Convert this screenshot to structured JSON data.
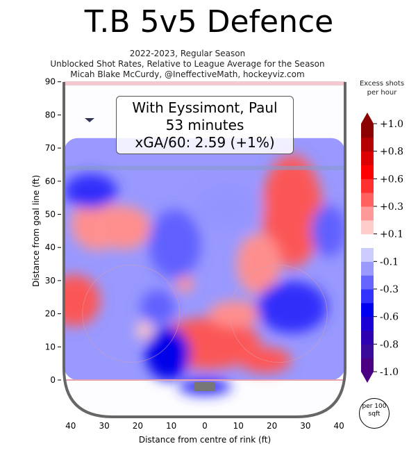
{
  "chart_data": {
    "type": "heatmap",
    "title": "T.B 5v5 Defence",
    "subtitles": [
      "2022-2023, Regular Season",
      "Unblocked Shot Rates, Relative to League Average for the Season",
      "Micah Blake McCurdy, @IneffectiveMath, hockeyviz.com"
    ],
    "xlabel": "Distance from centre of rink (ft)",
    "ylabel": "Distance from goal line (ft)",
    "xlim": [
      -42.5,
      42.5
    ],
    "ylim": [
      -11,
      90
    ],
    "xticks": [
      -40,
      -30,
      -20,
      -10,
      0,
      10,
      20,
      30,
      40
    ],
    "xtick_labels": [
      "40",
      "30",
      "20",
      "10",
      "0",
      "10",
      "20",
      "30",
      "40"
    ],
    "yticks": [
      0,
      10,
      20,
      30,
      40,
      50,
      60,
      70,
      80,
      90
    ],
    "yticklabels": [
      "0",
      "10",
      "20",
      "30",
      "40",
      "50",
      "60",
      "70",
      "80",
      "90"
    ],
    "annotation": {
      "line1": "With Eyssimont, Paul",
      "line2": "53 minutes",
      "line3": "xGA/60: 2.59 (+1%)"
    },
    "colorbar": {
      "title": "Excess shots per hour",
      "ticks": [
        "+1.0",
        "+0.8",
        "+0.6",
        "+0.3",
        "+0.1",
        "-0.1",
        "-0.3",
        "-0.6",
        "-0.8",
        "-1.0"
      ],
      "range": [
        -1,
        1
      ]
    },
    "unit_badge": "per 100 sqft",
    "background_value": -0.15,
    "hotspots": [
      {
        "x": 1,
        "y": 11,
        "rx": 12,
        "ry": 6,
        "v": 1.0
      },
      {
        "x": 26,
        "y": 51,
        "rx": 7,
        "ry": 13,
        "v": 1.0
      },
      {
        "x": 16,
        "y": 35,
        "rx": 5,
        "ry": 7,
        "v": 0.8
      },
      {
        "x": -32,
        "y": 47,
        "rx": 6,
        "ry": 6,
        "v": 0.7
      },
      {
        "x": -24,
        "y": 46,
        "rx": 6,
        "ry": 5,
        "v": 0.7
      },
      {
        "x": -39,
        "y": 24,
        "rx": 6,
        "ry": 6,
        "v": 1.0
      },
      {
        "x": -6,
        "y": 29,
        "rx": 2,
        "ry": 2,
        "v": 0.6
      },
      {
        "x": -18,
        "y": 15,
        "rx": 2,
        "ry": 2,
        "v": 0.5
      },
      {
        "x": 18,
        "y": 6,
        "rx": 6,
        "ry": 3,
        "v": 0.9
      },
      {
        "x": 9,
        "y": 20,
        "rx": 6,
        "ry": 3,
        "v": 0.7
      },
      {
        "x": -34,
        "y": 57,
        "rx": 6,
        "ry": 4,
        "v": -0.8
      },
      {
        "x": -9,
        "y": 41,
        "rx": 6,
        "ry": 8,
        "v": -0.6
      },
      {
        "x": -11,
        "y": 8,
        "rx": 5,
        "ry": 6,
        "v": -1.0
      },
      {
        "x": 26,
        "y": 22,
        "rx": 8,
        "ry": 6,
        "v": -0.8
      },
      {
        "x": -14,
        "y": 22,
        "rx": 4,
        "ry": 4,
        "v": -0.6
      },
      {
        "x": 7,
        "y": 52,
        "rx": 8,
        "ry": 6,
        "v": -0.3
      },
      {
        "x": 37,
        "y": 45,
        "rx": 4,
        "ry": 6,
        "v": -0.5
      },
      {
        "x": 0,
        "y": -2,
        "rx": 6,
        "ry": 2,
        "v": -0.8
      }
    ]
  }
}
